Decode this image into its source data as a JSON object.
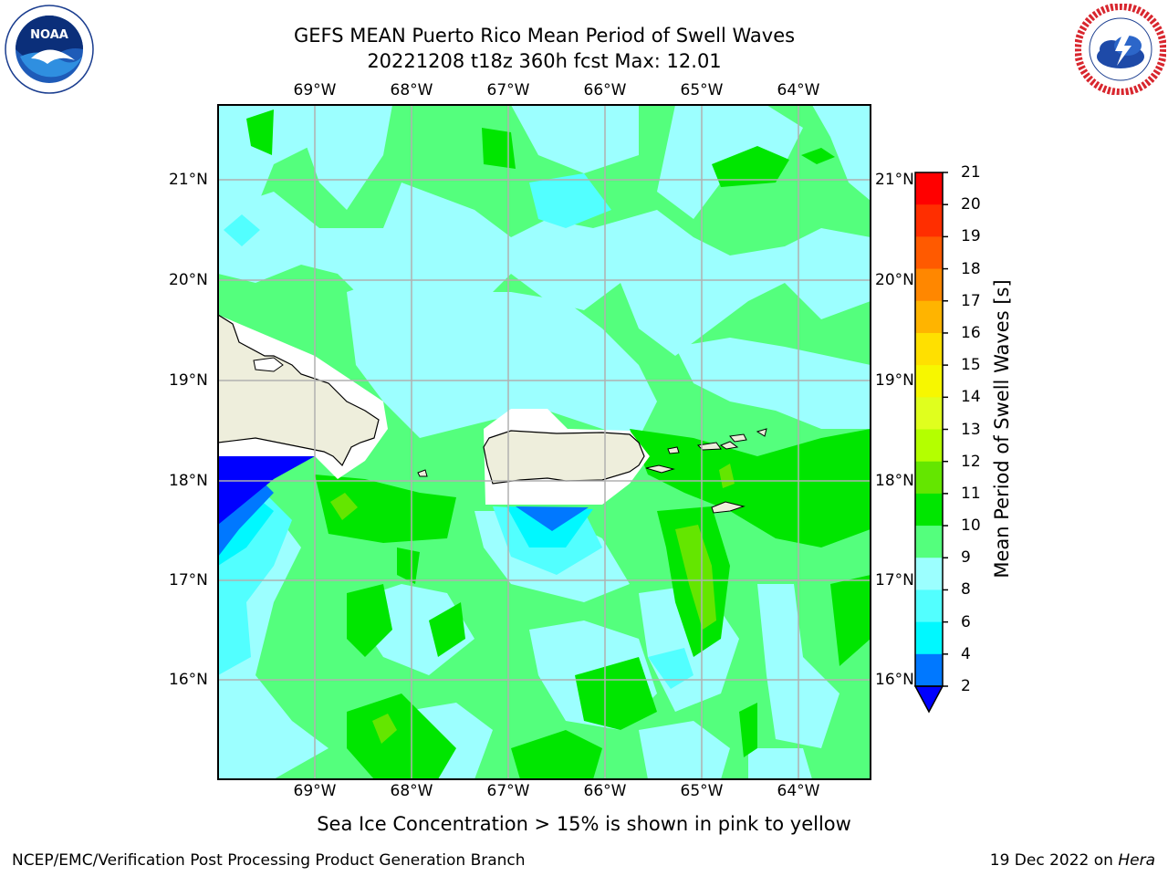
{
  "title": {
    "line1": "GEFS MEAN Puerto Rico Mean Period of Swell Waves",
    "line2": "20221208 t18z 360h fcst   Max: 12.01"
  },
  "logos": {
    "left": {
      "icon": "noaa-logo-icon",
      "text": "NOAA",
      "ring_text": "NATIONAL OCEANIC AND ATMOSPHERIC ADMINISTRATION · U.S. DEPARTMENT OF COMMERCE"
    },
    "right": {
      "icon": "nws-logo-icon",
      "ring_text": "NATIONAL WEATHER SERVICE"
    }
  },
  "map": {
    "longitude_labels": [
      "69°W",
      "68°W",
      "67°W",
      "66°W",
      "65°W",
      "64°W"
    ],
    "latitude_labels": [
      "21°N",
      "20°N",
      "19°N",
      "18°N",
      "17°N",
      "16°N"
    ],
    "land_color": "#eeeedc",
    "ocean_dominant_color": "#54ff7d",
    "gridline_color": "#b0b0b0"
  },
  "colorbar": {
    "label": "Mean Period of Swell Waves [s]",
    "ticks": [
      "21",
      "20",
      "19",
      "18",
      "17",
      "16",
      "15",
      "14",
      "13",
      "12",
      "11",
      "10",
      "9",
      "8",
      "6",
      "4",
      "2"
    ],
    "colors": [
      "#ff0000",
      "#ff2e00",
      "#ff5a00",
      "#ff8700",
      "#ffb400",
      "#ffe000",
      "#f7f700",
      "#e0ff1e",
      "#b4ff00",
      "#64e600",
      "#00e600",
      "#54ff7d",
      "#9cffff",
      "#52ffff",
      "#00f8ff",
      "#0078ff",
      "#0000ff"
    ]
  },
  "caption": "Sea Ice Concentration > 15% is shown in pink to yellow",
  "footer": {
    "left": "NCEP/EMC/Verification Post Processing Product Generation Branch",
    "right_prefix": "19 Dec 2022 on",
    "right_system": "Hera"
  }
}
